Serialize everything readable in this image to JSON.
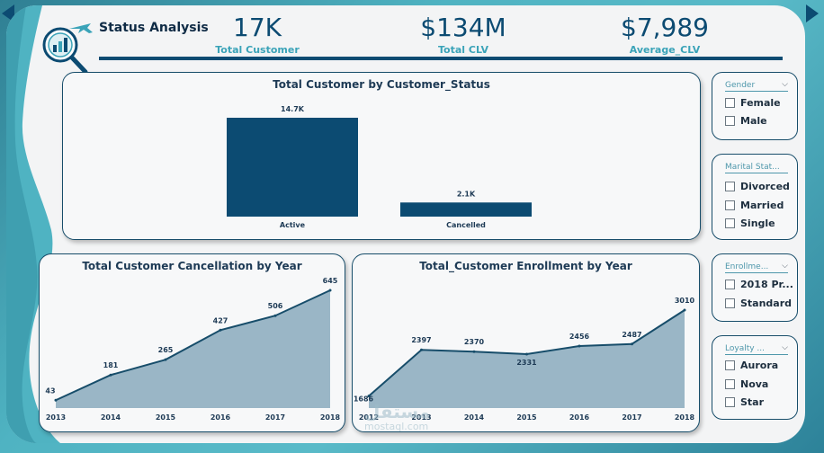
{
  "header": {
    "title": "Status Analysis",
    "logo_icon": "airplane-analytics-icon"
  },
  "kpis": [
    {
      "value": "17K",
      "label": "Total Customer"
    },
    {
      "value": "$134M",
      "label": "Total CLV"
    },
    {
      "value": "$7,989",
      "label": "Average_CLV"
    }
  ],
  "colors": {
    "primary": "#0c4b72",
    "accent": "#3aa3b8",
    "area_fill": "#9ab6c6",
    "line": "#174d6a",
    "background_teal": "#4fb3c2"
  },
  "chart_data": [
    {
      "type": "bar",
      "title": "Total Customer by Customer_Status",
      "categories": [
        "Active",
        "Cancelled"
      ],
      "values": [
        14700,
        2100
      ],
      "data_labels": [
        "14.7K",
        "2.1K"
      ],
      "ylim": [
        0,
        14700
      ],
      "grid": false
    },
    {
      "type": "area",
      "title": "Total Customer Cancellation by Year",
      "x": [
        "2013",
        "2014",
        "2015",
        "2016",
        "2017",
        "2018"
      ],
      "values": [
        43,
        181,
        265,
        427,
        506,
        645
      ],
      "ylim": [
        0,
        645
      ],
      "grid": false
    },
    {
      "type": "area",
      "title": "Total_Customer Enrollment by Year",
      "x": [
        "2012",
        "2013",
        "2014",
        "2015",
        "2016",
        "2017",
        "2018"
      ],
      "values": [
        1686,
        2397,
        2370,
        2331,
        2456,
        2487,
        3010
      ],
      "ylim": [
        1500,
        3010
      ],
      "grid": false
    }
  ],
  "slicers": [
    {
      "name": "Gender",
      "options": [
        "Female",
        "Male"
      ]
    },
    {
      "name": "Marital Stat...",
      "options": [
        "Divorced",
        "Married",
        "Single"
      ]
    },
    {
      "name": "Enrollme...",
      "options": [
        "2018 Pr...",
        "Standard"
      ]
    },
    {
      "name": "Loyalty ...",
      "options": [
        "Aurora",
        "Nova",
        "Star"
      ]
    }
  ],
  "watermark": {
    "line1": "مستقل",
    "line2": "mostaql.com"
  }
}
